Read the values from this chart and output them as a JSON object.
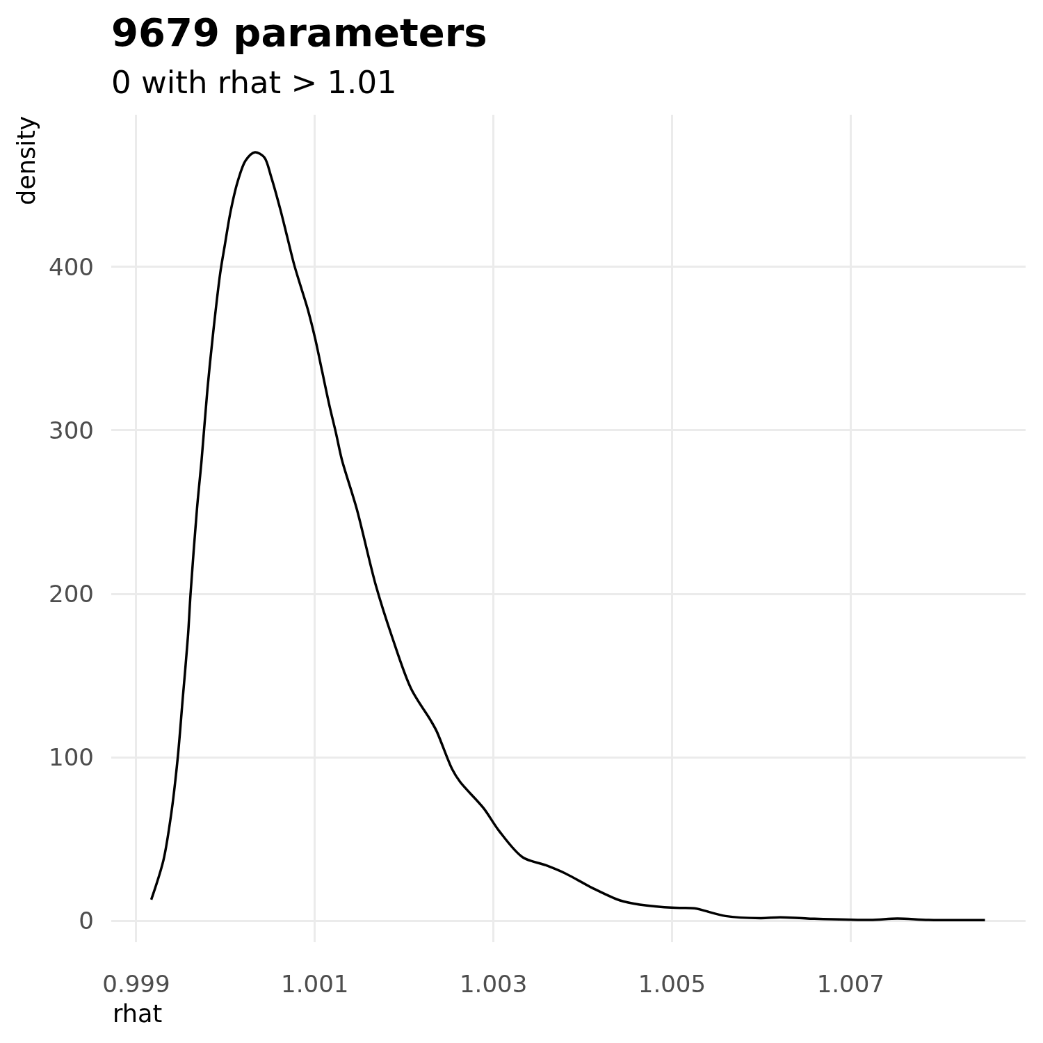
{
  "chart_data": {
    "type": "line",
    "title": "9679 parameters",
    "subtitle": "0 with rhat > 1.01",
    "xlabel": "rhat",
    "ylabel": "density",
    "x": [
      0.999168,
      0.999304,
      0.999393,
      0.999465,
      0.999519,
      0.999579,
      0.999608,
      0.99968,
      0.999732,
      0.999797,
      0.999862,
      0.99994,
      0.999991,
      1.000057,
      1.000135,
      1.000225,
      1.000329,
      1.000433,
      1.000511,
      1.000614,
      1.000692,
      1.00077,
      1.000848,
      1.000926,
      1.001004,
      1.001082,
      1.00116,
      1.001238,
      1.001303,
      1.001469,
      1.001684,
      1.001863,
      1.002078,
      1.002293,
      1.002364,
      1.002536,
      1.002627,
      1.002889,
      1.003064,
      1.003326,
      1.003589,
      1.003807,
      1.004113,
      1.004419,
      1.004638,
      1.005031,
      1.005249,
      1.005599,
      1.005992,
      1.006211,
      1.006517,
      1.007217,
      1.007523,
      1.007872,
      1.008505
    ],
    "series": [
      {
        "color": "#000000",
        "values": [
          13,
          37,
          66,
          100,
          135,
          174,
          200,
          252,
          282,
          325,
          360,
          396,
          413,
          434,
          452,
          465,
          470,
          467,
          455,
          435,
          418,
          401,
          387,
          373,
          356,
          336,
          316,
          298,
          282,
          252,
          205,
          174,
          142,
          123,
          116,
          93,
          85,
          69,
          55,
          39,
          34,
          29,
          20,
          12.5,
          10,
          8,
          7.7,
          3,
          1.7,
          2.2,
          1.5,
          0.6,
          1.5,
          0.6,
          0.5
        ]
      }
    ],
    "xlim": [
      0.99872,
      1.00896
    ],
    "ylim": [
      -13,
      493
    ],
    "xticks": [
      0.999,
      1.001,
      1.003,
      1.005,
      1.007
    ],
    "yticks": [
      0,
      100,
      200,
      300,
      400
    ],
    "grid": true,
    "line_style": "solid"
  }
}
